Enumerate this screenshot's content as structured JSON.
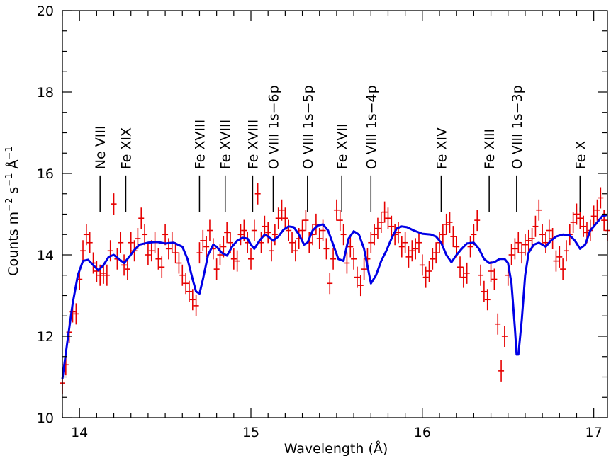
{
  "chart_data": {
    "type": "line",
    "xlabel": "Wavelength (Å)",
    "ylabel": {
      "base": "Counts m",
      "e1": "−2",
      "mid": " s",
      "e2": "−1",
      "unit": " Å",
      "e3": "−1"
    },
    "xlim": [
      13.9,
      17.08
    ],
    "ylim": [
      10,
      20
    ],
    "x_ticks": [
      14,
      15,
      16,
      17
    ],
    "y_ticks": [
      10,
      12,
      14,
      16,
      18,
      20
    ],
    "grid": false,
    "colors": {
      "model": "#0000e6",
      "data": "#e60000",
      "axis": "#000000"
    },
    "line_ids": [
      {
        "label": "Ne VIII",
        "x": 14.12
      },
      {
        "label": "Fe XIX",
        "x": 14.27
      },
      {
        "label": "Fe XVIII",
        "x": 14.7
      },
      {
        "label": "Fe XVIII",
        "x": 14.85
      },
      {
        "label": "Fe XVIII",
        "x": 15.01
      },
      {
        "label": "O VIII 1s−6p",
        "x": 15.13
      },
      {
        "label": "O VIII 1s−5p",
        "x": 15.33
      },
      {
        "label": "Fe XVII",
        "x": 15.53
      },
      {
        "label": "O VIII 1s−4p",
        "x": 15.7
      },
      {
        "label": "Fe XIV",
        "x": 16.11
      },
      {
        "label": "Fe XIII",
        "x": 16.39
      },
      {
        "label": "O VIII 1s−3p",
        "x": 16.55
      },
      {
        "label": "Fe X",
        "x": 16.92
      }
    ],
    "series": [
      {
        "kind": "model-curve",
        "x": [
          13.9,
          13.93,
          13.96,
          13.99,
          14.02,
          14.05,
          14.08,
          14.11,
          14.14,
          14.17,
          14.2,
          14.23,
          14.26,
          14.29,
          14.32,
          14.35,
          14.4,
          14.45,
          14.5,
          14.55,
          14.6,
          14.63,
          14.66,
          14.68,
          14.7,
          14.72,
          14.75,
          14.78,
          14.8,
          14.83,
          14.86,
          14.89,
          14.92,
          14.95,
          14.98,
          15.0,
          15.02,
          15.05,
          15.08,
          15.1,
          15.13,
          15.16,
          15.19,
          15.22,
          15.25,
          15.28,
          15.31,
          15.33,
          15.36,
          15.39,
          15.42,
          15.45,
          15.48,
          15.51,
          15.54,
          15.57,
          15.6,
          15.63,
          15.66,
          15.7,
          15.73,
          15.76,
          15.79,
          15.82,
          15.85,
          15.88,
          15.91,
          15.95,
          16.0,
          16.05,
          16.08,
          16.11,
          16.14,
          16.17,
          16.2,
          16.23,
          16.26,
          16.3,
          16.33,
          16.36,
          16.39,
          16.42,
          16.45,
          16.48,
          16.5,
          16.52,
          16.54,
          16.55,
          16.56,
          16.58,
          16.6,
          16.62,
          16.65,
          16.68,
          16.72,
          16.75,
          16.78,
          16.82,
          16.86,
          16.89,
          16.92,
          16.95,
          16.98,
          17.02,
          17.05,
          17.08
        ],
        "y": [
          10.95,
          11.9,
          12.8,
          13.5,
          13.85,
          13.88,
          13.75,
          13.62,
          13.75,
          13.95,
          14.0,
          13.9,
          13.8,
          13.95,
          14.12,
          14.25,
          14.3,
          14.32,
          14.28,
          14.3,
          14.2,
          13.9,
          13.4,
          13.1,
          13.05,
          13.4,
          14.0,
          14.25,
          14.2,
          14.05,
          13.98,
          14.2,
          14.35,
          14.42,
          14.4,
          14.25,
          14.15,
          14.35,
          14.5,
          14.45,
          14.35,
          14.45,
          14.62,
          14.7,
          14.68,
          14.5,
          14.25,
          14.3,
          14.6,
          14.72,
          14.75,
          14.6,
          14.25,
          13.9,
          13.85,
          14.4,
          14.58,
          14.5,
          14.15,
          13.3,
          13.5,
          13.85,
          14.1,
          14.4,
          14.65,
          14.7,
          14.68,
          14.6,
          14.52,
          14.5,
          14.45,
          14.3,
          14.0,
          13.82,
          14.0,
          14.15,
          14.28,
          14.3,
          14.15,
          13.9,
          13.8,
          13.82,
          13.9,
          13.9,
          13.8,
          13.3,
          12.2,
          11.55,
          11.55,
          12.4,
          13.5,
          14.05,
          14.25,
          14.3,
          14.2,
          14.35,
          14.45,
          14.5,
          14.48,
          14.35,
          14.15,
          14.25,
          14.6,
          14.8,
          14.95,
          14.98
        ]
      },
      {
        "kind": "data-points",
        "x": [
          13.9,
          13.92,
          13.94,
          13.96,
          13.98,
          14.0,
          14.02,
          14.04,
          14.06,
          14.08,
          14.1,
          14.12,
          14.14,
          14.16,
          14.18,
          14.2,
          14.22,
          14.24,
          14.26,
          14.28,
          14.3,
          14.32,
          14.34,
          14.36,
          14.38,
          14.4,
          14.42,
          14.44,
          14.46,
          14.48,
          14.5,
          14.52,
          14.54,
          14.56,
          14.58,
          14.6,
          14.62,
          14.64,
          14.66,
          14.68,
          14.7,
          14.72,
          14.74,
          14.76,
          14.78,
          14.8,
          14.82,
          14.84,
          14.86,
          14.88,
          14.9,
          14.92,
          14.94,
          14.96,
          14.98,
          15.0,
          15.02,
          15.04,
          15.06,
          15.08,
          15.1,
          15.12,
          15.14,
          15.16,
          15.18,
          15.2,
          15.22,
          15.24,
          15.26,
          15.28,
          15.3,
          15.32,
          15.34,
          15.36,
          15.38,
          15.4,
          15.42,
          15.44,
          15.46,
          15.48,
          15.5,
          15.52,
          15.54,
          15.56,
          15.58,
          15.6,
          15.62,
          15.64,
          15.66,
          15.68,
          15.7,
          15.72,
          15.74,
          15.76,
          15.78,
          15.8,
          15.82,
          15.84,
          15.86,
          15.88,
          15.9,
          15.92,
          15.94,
          15.96,
          15.98,
          16.0,
          16.02,
          16.04,
          16.06,
          16.08,
          16.1,
          16.12,
          16.14,
          16.16,
          16.18,
          16.2,
          16.22,
          16.24,
          16.26,
          16.28,
          16.3,
          16.32,
          16.34,
          16.36,
          16.38,
          16.4,
          16.42,
          16.44,
          16.46,
          16.48,
          16.5,
          16.52,
          16.54,
          16.56,
          16.58,
          16.6,
          16.62,
          16.64,
          16.66,
          16.68,
          16.7,
          16.72,
          16.74,
          16.76,
          16.78,
          16.8,
          16.82,
          16.84,
          16.86,
          16.88,
          16.9,
          16.92,
          16.94,
          16.96,
          16.98,
          17.0,
          17.02,
          17.04,
          17.06,
          17.08
        ],
        "y": [
          10.85,
          11.3,
          12.1,
          12.6,
          12.55,
          13.4,
          14.1,
          14.5,
          14.3,
          13.8,
          13.6,
          13.5,
          13.55,
          13.5,
          14.1,
          15.25,
          13.9,
          14.3,
          13.75,
          13.65,
          14.3,
          14.1,
          14.4,
          14.9,
          14.5,
          14.0,
          14.1,
          14.3,
          13.9,
          13.7,
          14.5,
          14.15,
          14.3,
          14.05,
          13.8,
          13.5,
          13.3,
          13.1,
          12.9,
          12.75,
          14.05,
          14.35,
          14.2,
          14.6,
          14.15,
          13.65,
          14.0,
          14.2,
          14.55,
          14.3,
          13.9,
          13.85,
          14.5,
          14.6,
          14.3,
          13.9,
          14.6,
          15.5,
          14.3,
          14.7,
          14.55,
          14.1,
          14.5,
          14.9,
          15.1,
          14.9,
          14.6,
          14.3,
          14.1,
          14.4,
          14.6,
          14.85,
          14.3,
          14.5,
          14.75,
          14.4,
          14.6,
          14.15,
          13.3,
          13.9,
          15.1,
          14.85,
          14.5,
          13.8,
          14.2,
          13.9,
          13.45,
          13.25,
          13.65,
          13.9,
          14.3,
          14.5,
          14.65,
          14.8,
          15.05,
          14.9,
          14.7,
          14.5,
          14.55,
          14.2,
          14.3,
          13.95,
          14.1,
          14.15,
          14.3,
          13.75,
          13.45,
          13.6,
          13.9,
          14.05,
          14.3,
          14.5,
          14.75,
          14.8,
          14.45,
          14.2,
          13.7,
          13.45,
          13.55,
          14.2,
          14.5,
          14.85,
          13.5,
          13.1,
          12.9,
          13.6,
          13.4,
          12.3,
          11.15,
          12.0,
          13.5,
          14.0,
          14.15,
          14.3,
          14.05,
          14.25,
          14.35,
          14.4,
          14.7,
          15.1,
          14.5,
          14.3,
          14.6,
          14.4,
          13.85,
          13.95,
          13.65,
          14.1,
          14.5,
          14.8,
          15.0,
          14.9,
          14.7,
          14.55,
          14.6,
          14.95,
          15.1,
          15.4,
          14.85,
          14.6
        ]
      }
    ]
  }
}
